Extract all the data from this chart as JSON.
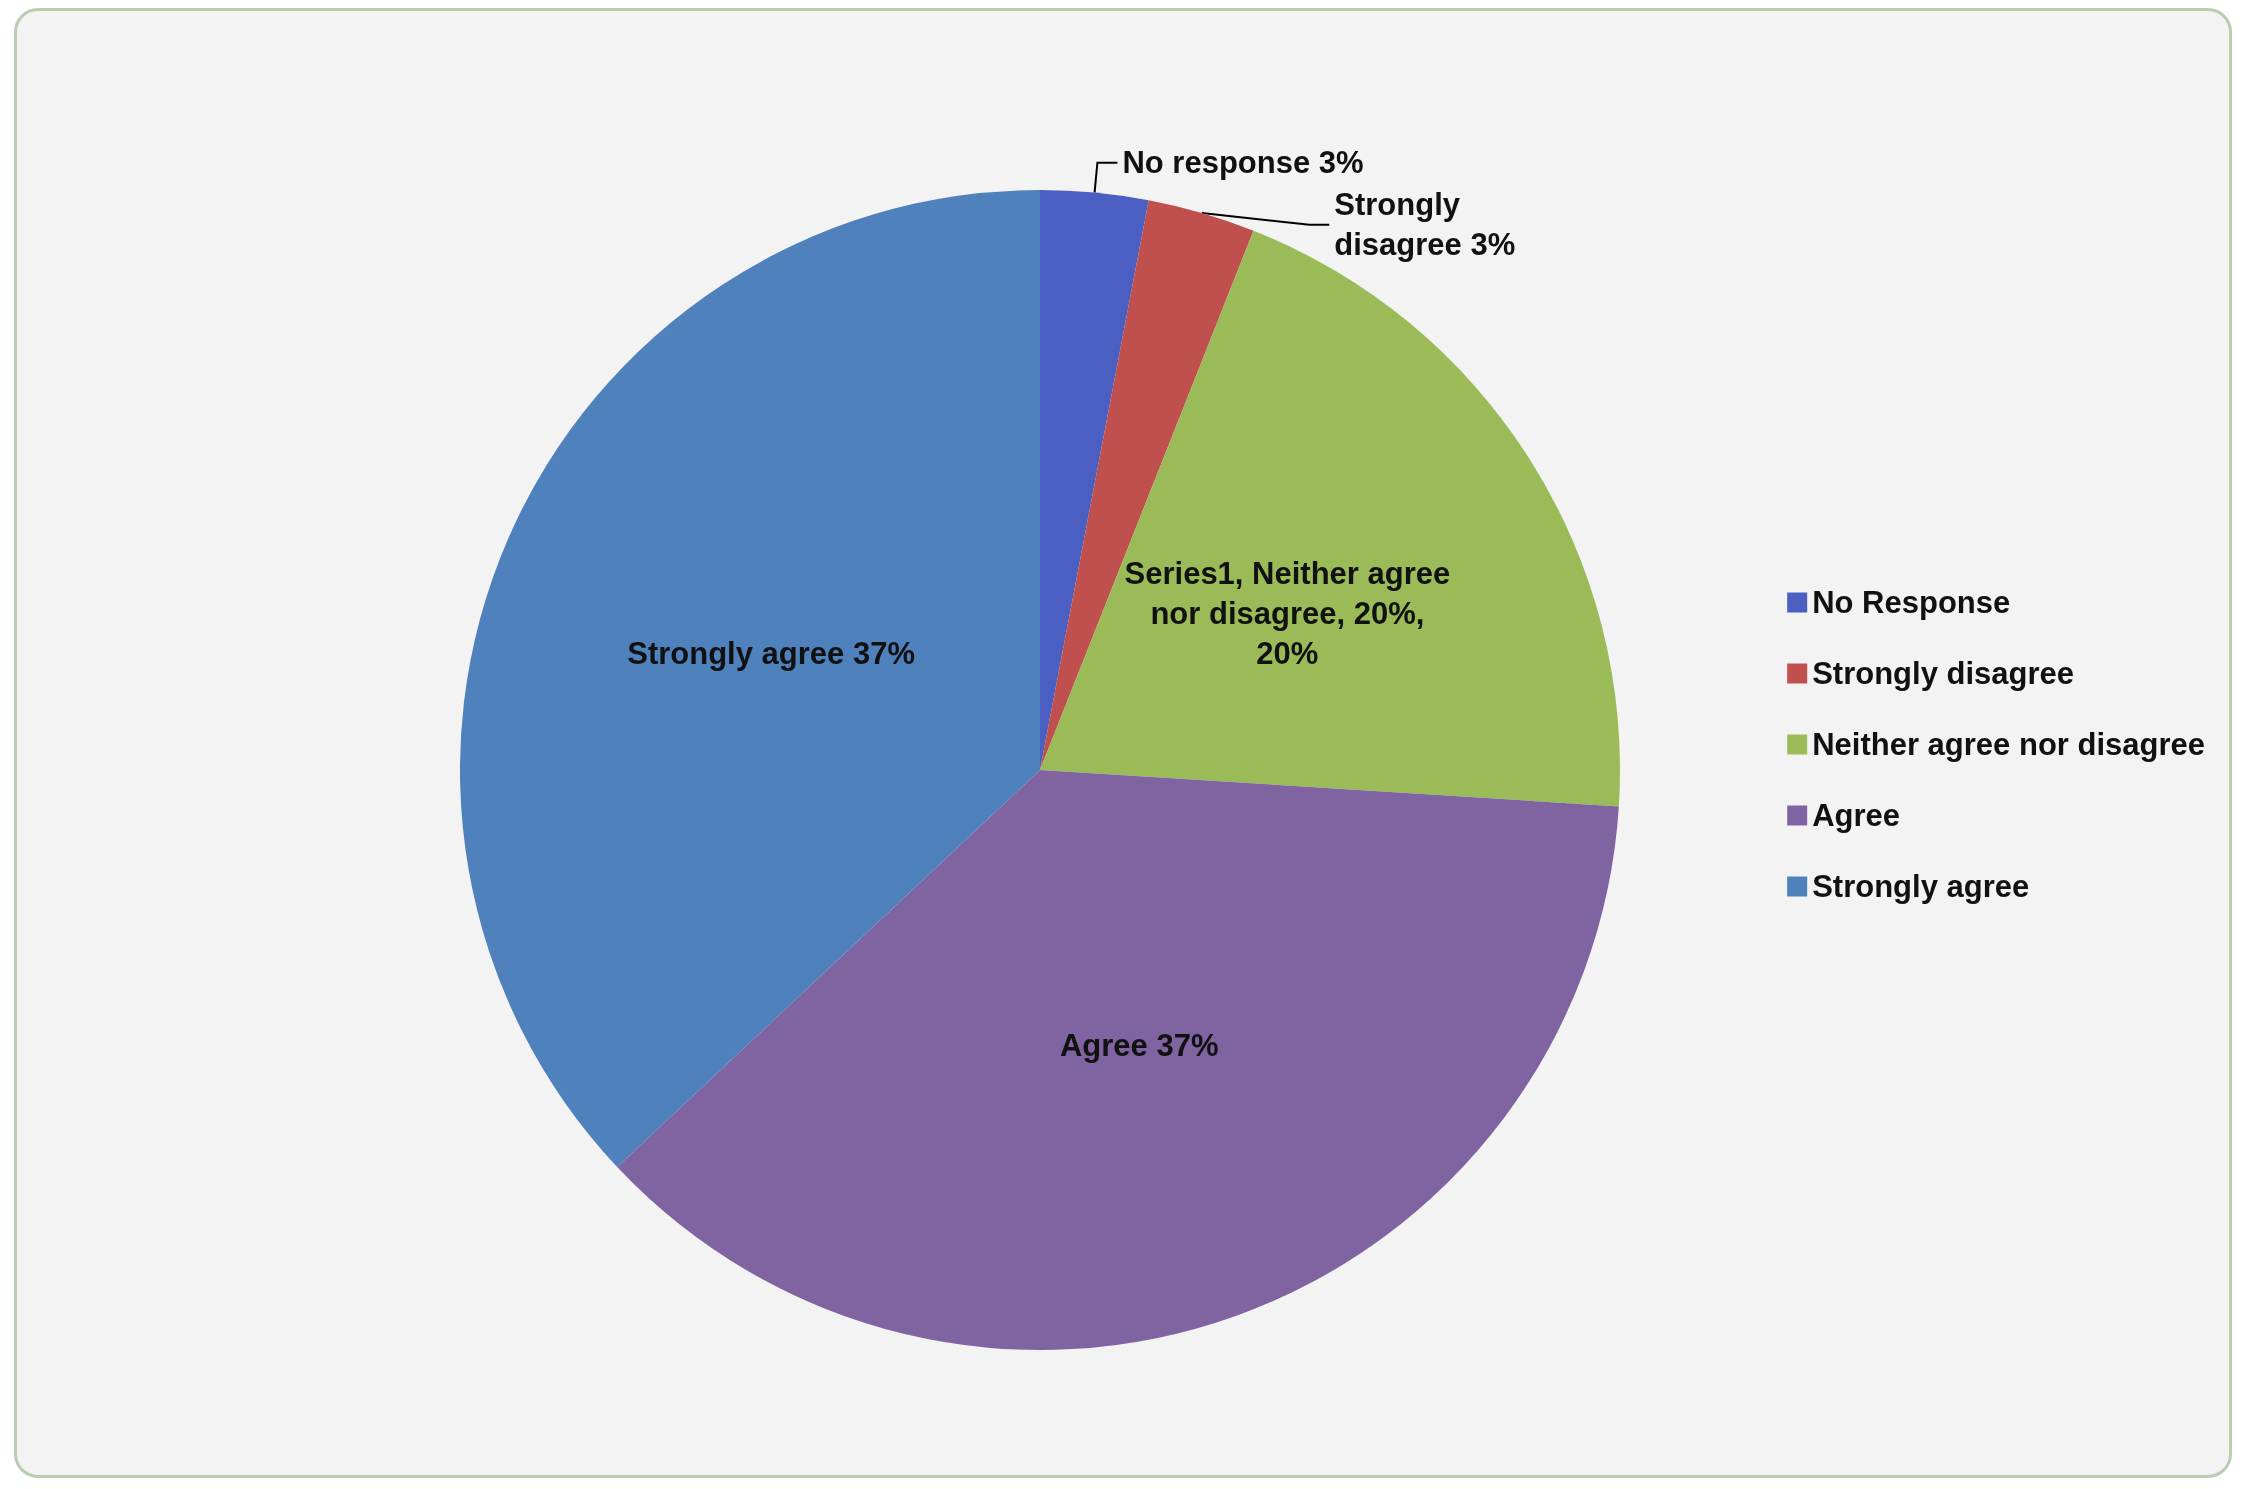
{
  "chart_data": {
    "type": "pie",
    "categories": [
      "No Response",
      "Strongly disagree",
      "Neither agree nor disagree",
      "Agree",
      "Strongly agree"
    ],
    "values": [
      3,
      3,
      20,
      37,
      37
    ],
    "colors": [
      "#4a5fc1",
      "#c0504d",
      "#9bbb59",
      "#8064a2",
      "#4f81bd"
    ],
    "value_labels": [
      "No response 3%",
      "Strongly disagree 3%",
      "Series1, Neither agree nor disagree, 20%, 20%",
      "Agree 37%",
      "Strongly agree 37%"
    ],
    "legend": "right"
  }
}
